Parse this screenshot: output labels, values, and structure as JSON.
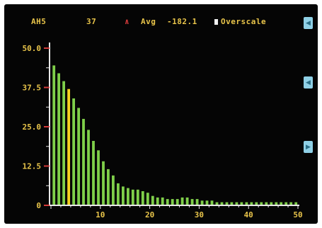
{
  "status": {
    "parameter": "AH5",
    "value": "37",
    "avg_symbol": "∧",
    "avg_label": "Avg",
    "avg_value": "-182.1",
    "legend_label": "Overscale"
  },
  "colors": {
    "bar": "#7fcf4a",
    "highlight_bar": "#f5d21e",
    "axis": "#e8e8e8",
    "tick_label": "#e8c44a",
    "tick_mark": "#d43a3a"
  },
  "side_buttons": [
    {
      "icon": "chevron-left-icon",
      "glyph": "◀"
    },
    {
      "icon": "chevron-left-icon",
      "glyph": "◀"
    },
    {
      "icon": "chevron-right-icon",
      "glyph": "▶"
    }
  ],
  "chart_data": {
    "type": "bar",
    "title": "",
    "xlabel": "",
    "ylabel": "",
    "xlim": [
      0,
      50
    ],
    "ylim": [
      0,
      50
    ],
    "x_ticks": [
      "10",
      "20",
      "30",
      "40",
      "50"
    ],
    "y_ticks": [
      "0",
      "12.5",
      "25.0",
      "37.5",
      "50.0"
    ],
    "x": [
      1,
      2,
      3,
      4,
      5,
      6,
      7,
      8,
      9,
      10,
      11,
      12,
      13,
      14,
      15,
      16,
      17,
      18,
      19,
      20,
      21,
      22,
      23,
      24,
      25,
      26,
      27,
      28,
      29,
      30,
      31,
      32,
      33,
      34,
      35,
      36,
      37,
      38,
      39,
      40,
      41,
      42,
      43,
      44,
      45,
      46,
      47,
      48,
      49,
      50
    ],
    "values": [
      44.5,
      42,
      39.5,
      37,
      34,
      31,
      27.5,
      24,
      20.5,
      17.5,
      14,
      11.5,
      9.5,
      7,
      6,
      5.5,
      5,
      5,
      4.5,
      4,
      3,
      2.5,
      2.5,
      2,
      2,
      2,
      2.5,
      2.5,
      2,
      2,
      1.5,
      1.5,
      1.5,
      1,
      1,
      1,
      1,
      1,
      1,
      1,
      1,
      1,
      1,
      1,
      1,
      1,
      1,
      1,
      1,
      1
    ],
    "highlight_index": 3,
    "grid": false
  }
}
